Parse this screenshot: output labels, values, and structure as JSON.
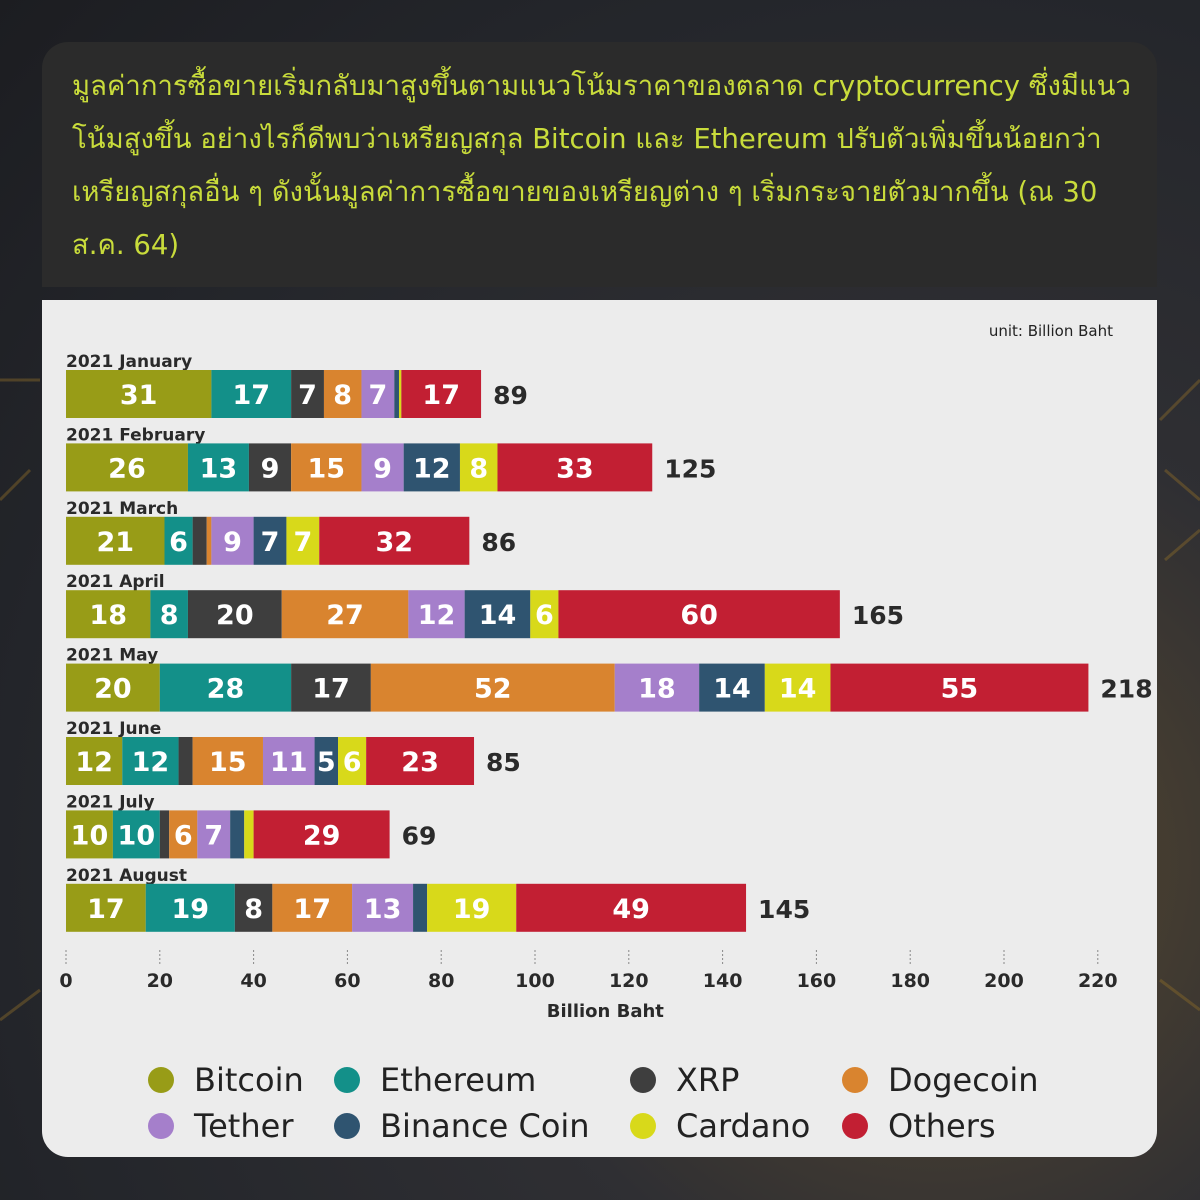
{
  "header": {
    "text": "มูลค่าการซื้อขายเริ่มกลับมาสูงขึ้นตามแนวโน้มราคาของตลาด cryptocurrency ซึ่งมีแนวโน้มสูงขึ้น อย่างไรก็ดีพบว่าเหรียญสกุล Bitcoin และ Ethereum ปรับตัวเพิ่มขึ้นน้อยกว่าเหรียญสกุลอื่น ๆ ดังนั้นมูลค่าการซื้อขายของเหรียญต่าง ๆ เริ่มกระจายตัวมากขึ้น (ณ 30 ส.ค. 64)"
  },
  "unit_label": "unit: Billion Baht",
  "colors": {
    "Bitcoin": "#989c17",
    "Ethereum": "#139089",
    "XRP": "#3e3e3e",
    "Dogecoin": "#d9842f",
    "Tether": "#a57fcb",
    "Binance Coin": "#2f5470",
    "Cardano": "#d8d91a",
    "Others": "#c21f33"
  },
  "legend": [
    {
      "label": "Bitcoin",
      "color": "#989c17"
    },
    {
      "label": "Ethereum",
      "color": "#139089"
    },
    {
      "label": "XRP",
      "color": "#3e3e3e"
    },
    {
      "label": "Dogecoin",
      "color": "#d9842f"
    },
    {
      "label": "Tether",
      "color": "#a57fcb"
    },
    {
      "label": "Binance Coin",
      "color": "#2f5470"
    },
    {
      "label": "Cardano",
      "color": "#d8d91a"
    },
    {
      "label": "Others",
      "color": "#c21f33"
    }
  ],
  "chart_data": {
    "type": "bar",
    "orientation": "horizontal",
    "stacked": true,
    "xlabel": "Billion Baht",
    "xlim": [
      0,
      220
    ],
    "xticks": [
      0,
      20,
      40,
      60,
      80,
      100,
      120,
      140,
      160,
      180,
      200,
      220
    ],
    "categories": [
      "2021 January",
      "2021 February",
      "2021 March",
      "2021 April",
      "2021 May",
      "2021 June",
      "2021 July",
      "2021 August"
    ],
    "totals": [
      89,
      125,
      86,
      165,
      218,
      85,
      69,
      145
    ],
    "series": [
      {
        "name": "Bitcoin",
        "values": [
          31,
          26,
          21,
          18,
          20,
          12,
          10,
          17
        ]
      },
      {
        "name": "Ethereum",
        "values": [
          17,
          13,
          6,
          8,
          28,
          12,
          10,
          19
        ]
      },
      {
        "name": "XRP",
        "values": [
          7,
          9,
          3,
          20,
          17,
          3,
          2,
          8
        ]
      },
      {
        "name": "Dogecoin",
        "values": [
          8,
          15,
          1,
          27,
          52,
          15,
          6,
          17
        ]
      },
      {
        "name": "Tether",
        "values": [
          7,
          9,
          9,
          12,
          18,
          11,
          7,
          13
        ]
      },
      {
        "name": "Binance Coin",
        "values": [
          1,
          12,
          7,
          14,
          14,
          5,
          3,
          3
        ]
      },
      {
        "name": "Cardano",
        "values": [
          0.5,
          8,
          7,
          6,
          14,
          6,
          2,
          19
        ]
      },
      {
        "name": "Others",
        "values": [
          17,
          33,
          32,
          60,
          55,
          23,
          29,
          49
        ]
      }
    ],
    "segment_labels": [
      [
        "31",
        "17",
        "7",
        "8",
        "7",
        "",
        "",
        "17"
      ],
      [
        "26",
        "13",
        "9",
        "15",
        "9",
        "12",
        "8",
        "33"
      ],
      [
        "21",
        "6",
        "",
        "",
        "9",
        "7",
        "7",
        "32"
      ],
      [
        "18",
        "8",
        "20",
        "27",
        "12",
        "14",
        "6",
        "60"
      ],
      [
        "20",
        "28",
        "17",
        "52",
        "18",
        "14",
        "14",
        "55"
      ],
      [
        "12",
        "12",
        "",
        "15",
        "11",
        "5",
        "6",
        "23"
      ],
      [
        "10",
        "10",
        "",
        "6",
        "7",
        "",
        "",
        "29"
      ],
      [
        "17",
        "19",
        "8",
        "17",
        "13",
        "",
        "19",
        "49"
      ]
    ],
    "legend_position": "bottom",
    "grid": false
  }
}
